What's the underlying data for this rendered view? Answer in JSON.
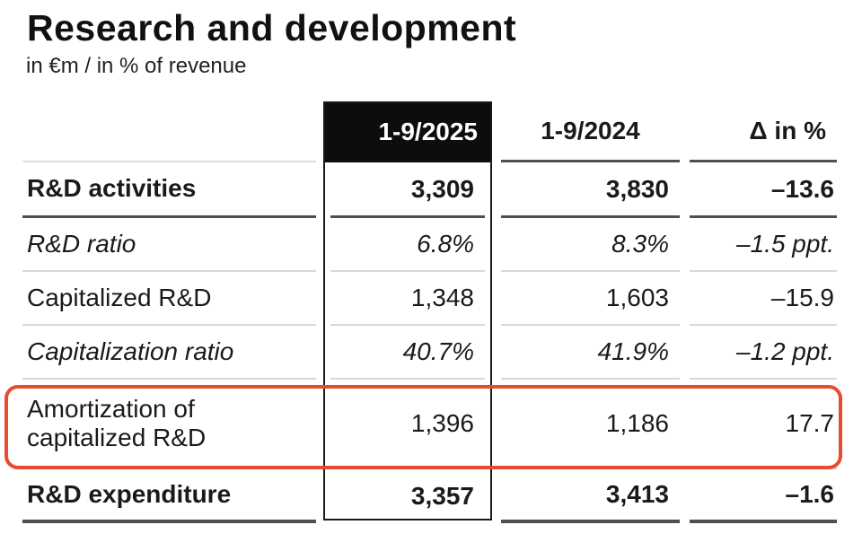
{
  "page": {
    "title": "Research and development",
    "subtitle": "in €m / in % of revenue"
  },
  "table": {
    "columns": [
      "1-9/2025",
      "1-9/2024",
      "Δ in %"
    ],
    "highlighted_column": "1-9/2025",
    "rows": [
      {
        "label": "R&D activities",
        "v2025": "3,309",
        "v2024": "3,830",
        "delta": "–13.6",
        "style": "bold",
        "highlighted": false
      },
      {
        "label": "R&D ratio",
        "v2025": "6.8%",
        "v2024": "8.3%",
        "delta": "–1.5 ppt.",
        "style": "italic",
        "highlighted": false
      },
      {
        "label": "Capitalized R&D",
        "v2025": "1,348",
        "v2024": "1,603",
        "delta": "–15.9",
        "style": "regular",
        "highlighted": false
      },
      {
        "label": "Capitalization ratio",
        "v2025": "40.7%",
        "v2024": "41.9%",
        "delta": "–1.2 ppt.",
        "style": "italic",
        "highlighted": false
      },
      {
        "label": "Amortization of capitalized R&D",
        "v2025": "1,396",
        "v2024": "1,186",
        "delta": "17.7",
        "style": "regular",
        "highlighted": true
      },
      {
        "label": "R&D expenditure",
        "v2025": "3,357",
        "v2024": "3,413",
        "delta": "–1.6",
        "style": "bold",
        "highlighted": false
      }
    ],
    "colors": {
      "highlight_annotation_border": "#e84c2f",
      "column_box_border": "#1a1a1a",
      "column_header_background": "#0d0d0d",
      "column_header_text": "#ffffff",
      "dark_rule": "#4f4f4f",
      "light_rule": "#d8d8d8",
      "text": "#1a1a1a"
    }
  }
}
